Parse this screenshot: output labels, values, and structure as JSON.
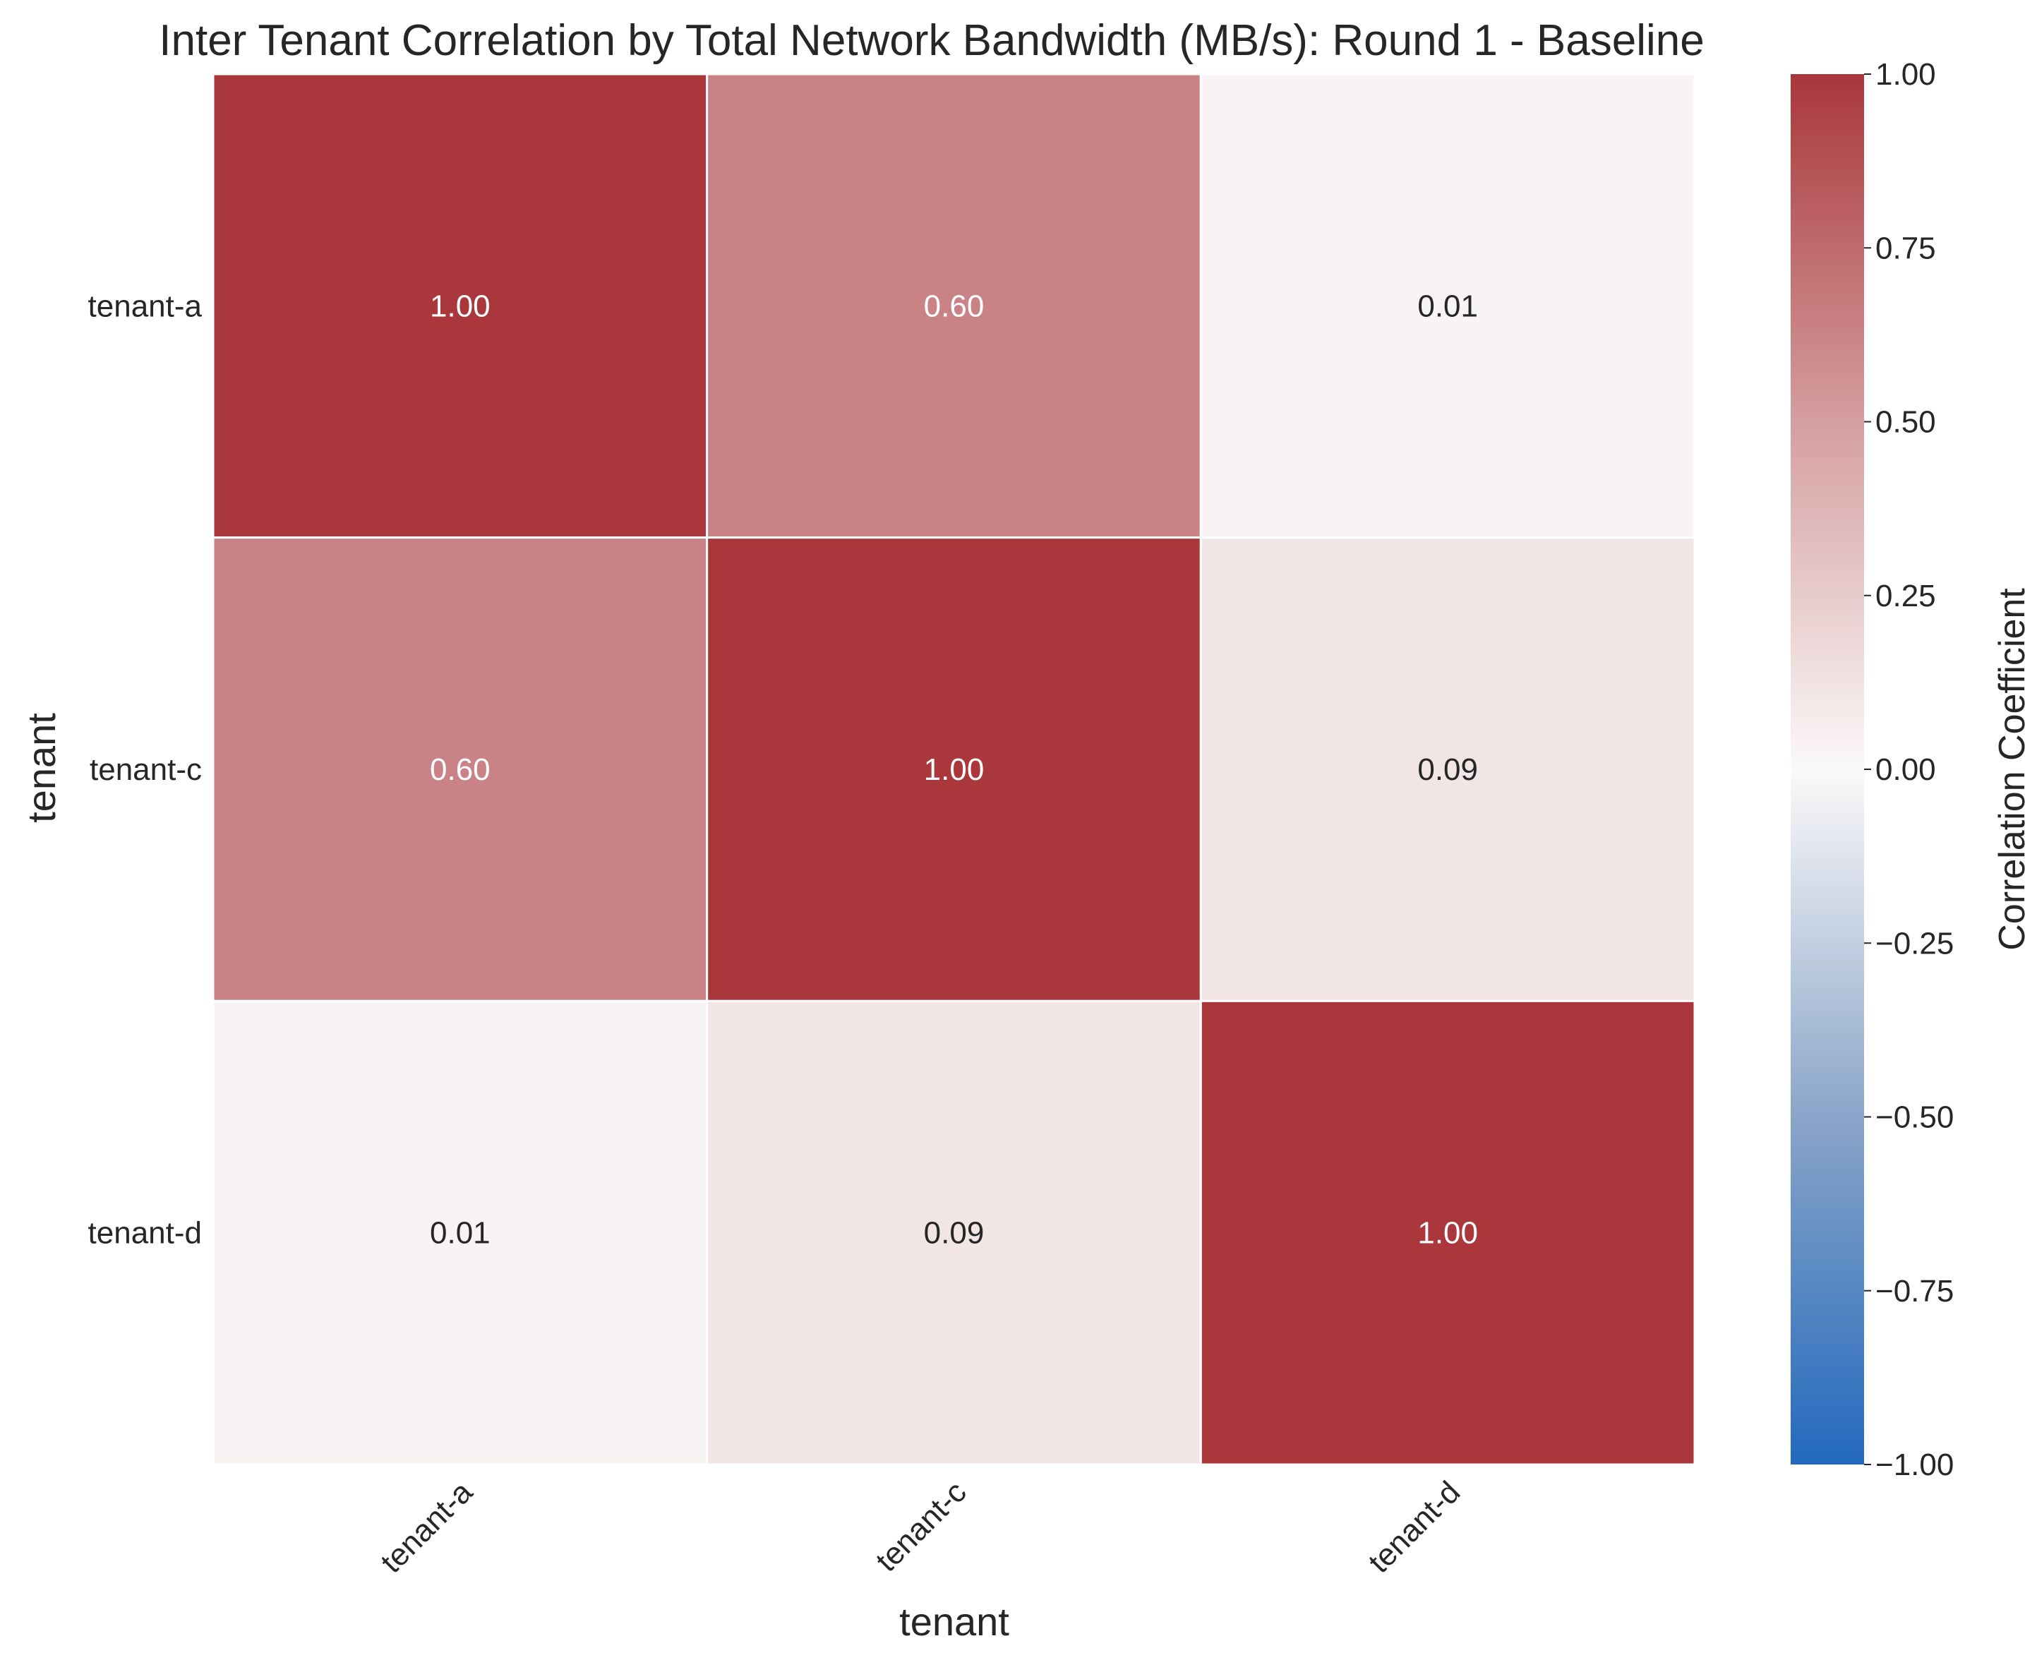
{
  "chart_data": {
    "type": "heatmap",
    "title": "Inter Tenant Correlation by Total Network Bandwidth (MB/s): Round 1 - Baseline",
    "xlabel": "tenant",
    "ylabel": "tenant",
    "x_categories": [
      "tenant-a",
      "tenant-c",
      "tenant-d"
    ],
    "y_categories": [
      "tenant-a",
      "tenant-c",
      "tenant-d"
    ],
    "values": [
      [
        1.0,
        0.6,
        0.01
      ],
      [
        0.6,
        1.0,
        0.09
      ],
      [
        0.01,
        0.09,
        1.0
      ]
    ],
    "value_labels": [
      [
        "1.00",
        "0.60",
        "0.01"
      ],
      [
        "0.60",
        "1.00",
        "0.09"
      ],
      [
        "0.01",
        "0.09",
        "1.00"
      ]
    ],
    "colorbar": {
      "label": "Correlation Coefficient",
      "range": [
        -1.0,
        1.0
      ],
      "ticks": [
        1.0,
        0.75,
        0.5,
        0.25,
        0.0,
        -0.25,
        -0.5,
        -0.75,
        -1.0
      ],
      "tick_labels": [
        "1.00",
        "0.75",
        "0.50",
        "0.25",
        "0.00",
        "−0.25",
        "−0.50",
        "−0.75",
        "−1.00"
      ],
      "colormap": "vlag",
      "color_stops": [
        "#2369bd",
        "#ffffff",
        "#a9373b"
      ]
    },
    "grid": false,
    "legend": "colorbar-right"
  }
}
